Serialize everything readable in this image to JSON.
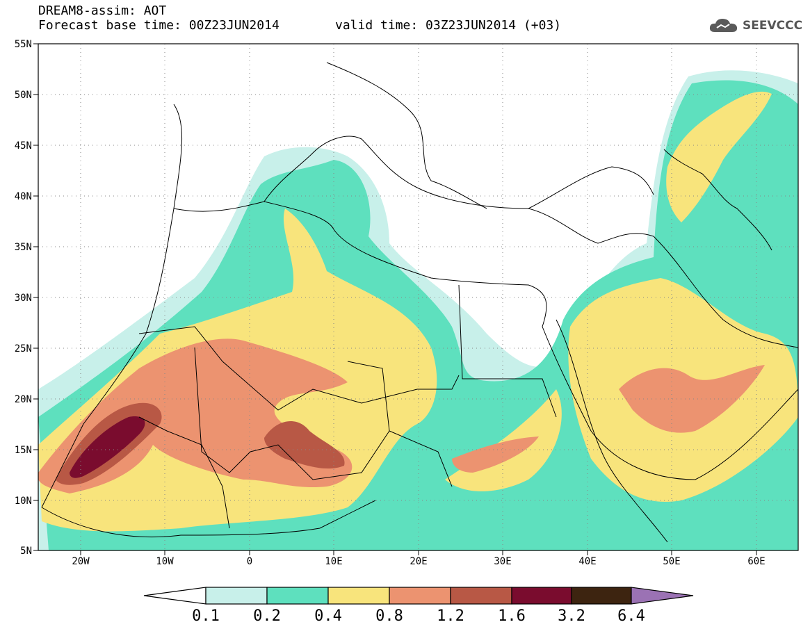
{
  "header": {
    "title": "DREAM8-assim: AOT",
    "base_time": "Forecast base time: 00Z23JUN2014",
    "valid_time": "valid time: 03Z23JUN2014 (+03)",
    "logo_text": "SEEVCCC",
    "logo_icon": "cloud-icon"
  },
  "map": {
    "lat_labels": [
      "55N",
      "50N",
      "45N",
      "40N",
      "35N",
      "30N",
      "25N",
      "20N",
      "15N",
      "10N",
      "5N"
    ],
    "lon_labels": [
      "20W",
      "10W",
      "0",
      "10E",
      "20E",
      "30E",
      "40E",
      "50E",
      "60E"
    ],
    "lat_range": [
      5,
      55
    ],
    "lon_range": [
      -25,
      65
    ],
    "grid": "dotted"
  },
  "legend": {
    "levels": [
      "0.1",
      "0.2",
      "0.4",
      "0.8",
      "1.2",
      "1.6",
      "3.2",
      "6.4"
    ],
    "colors": [
      "#ffffff",
      "#c8f0ea",
      "#5ee0be",
      "#f8e47c",
      "#ec9370",
      "#b85845",
      "#7a0c2e",
      "#3d2410",
      "#9b72b4"
    ]
  }
}
